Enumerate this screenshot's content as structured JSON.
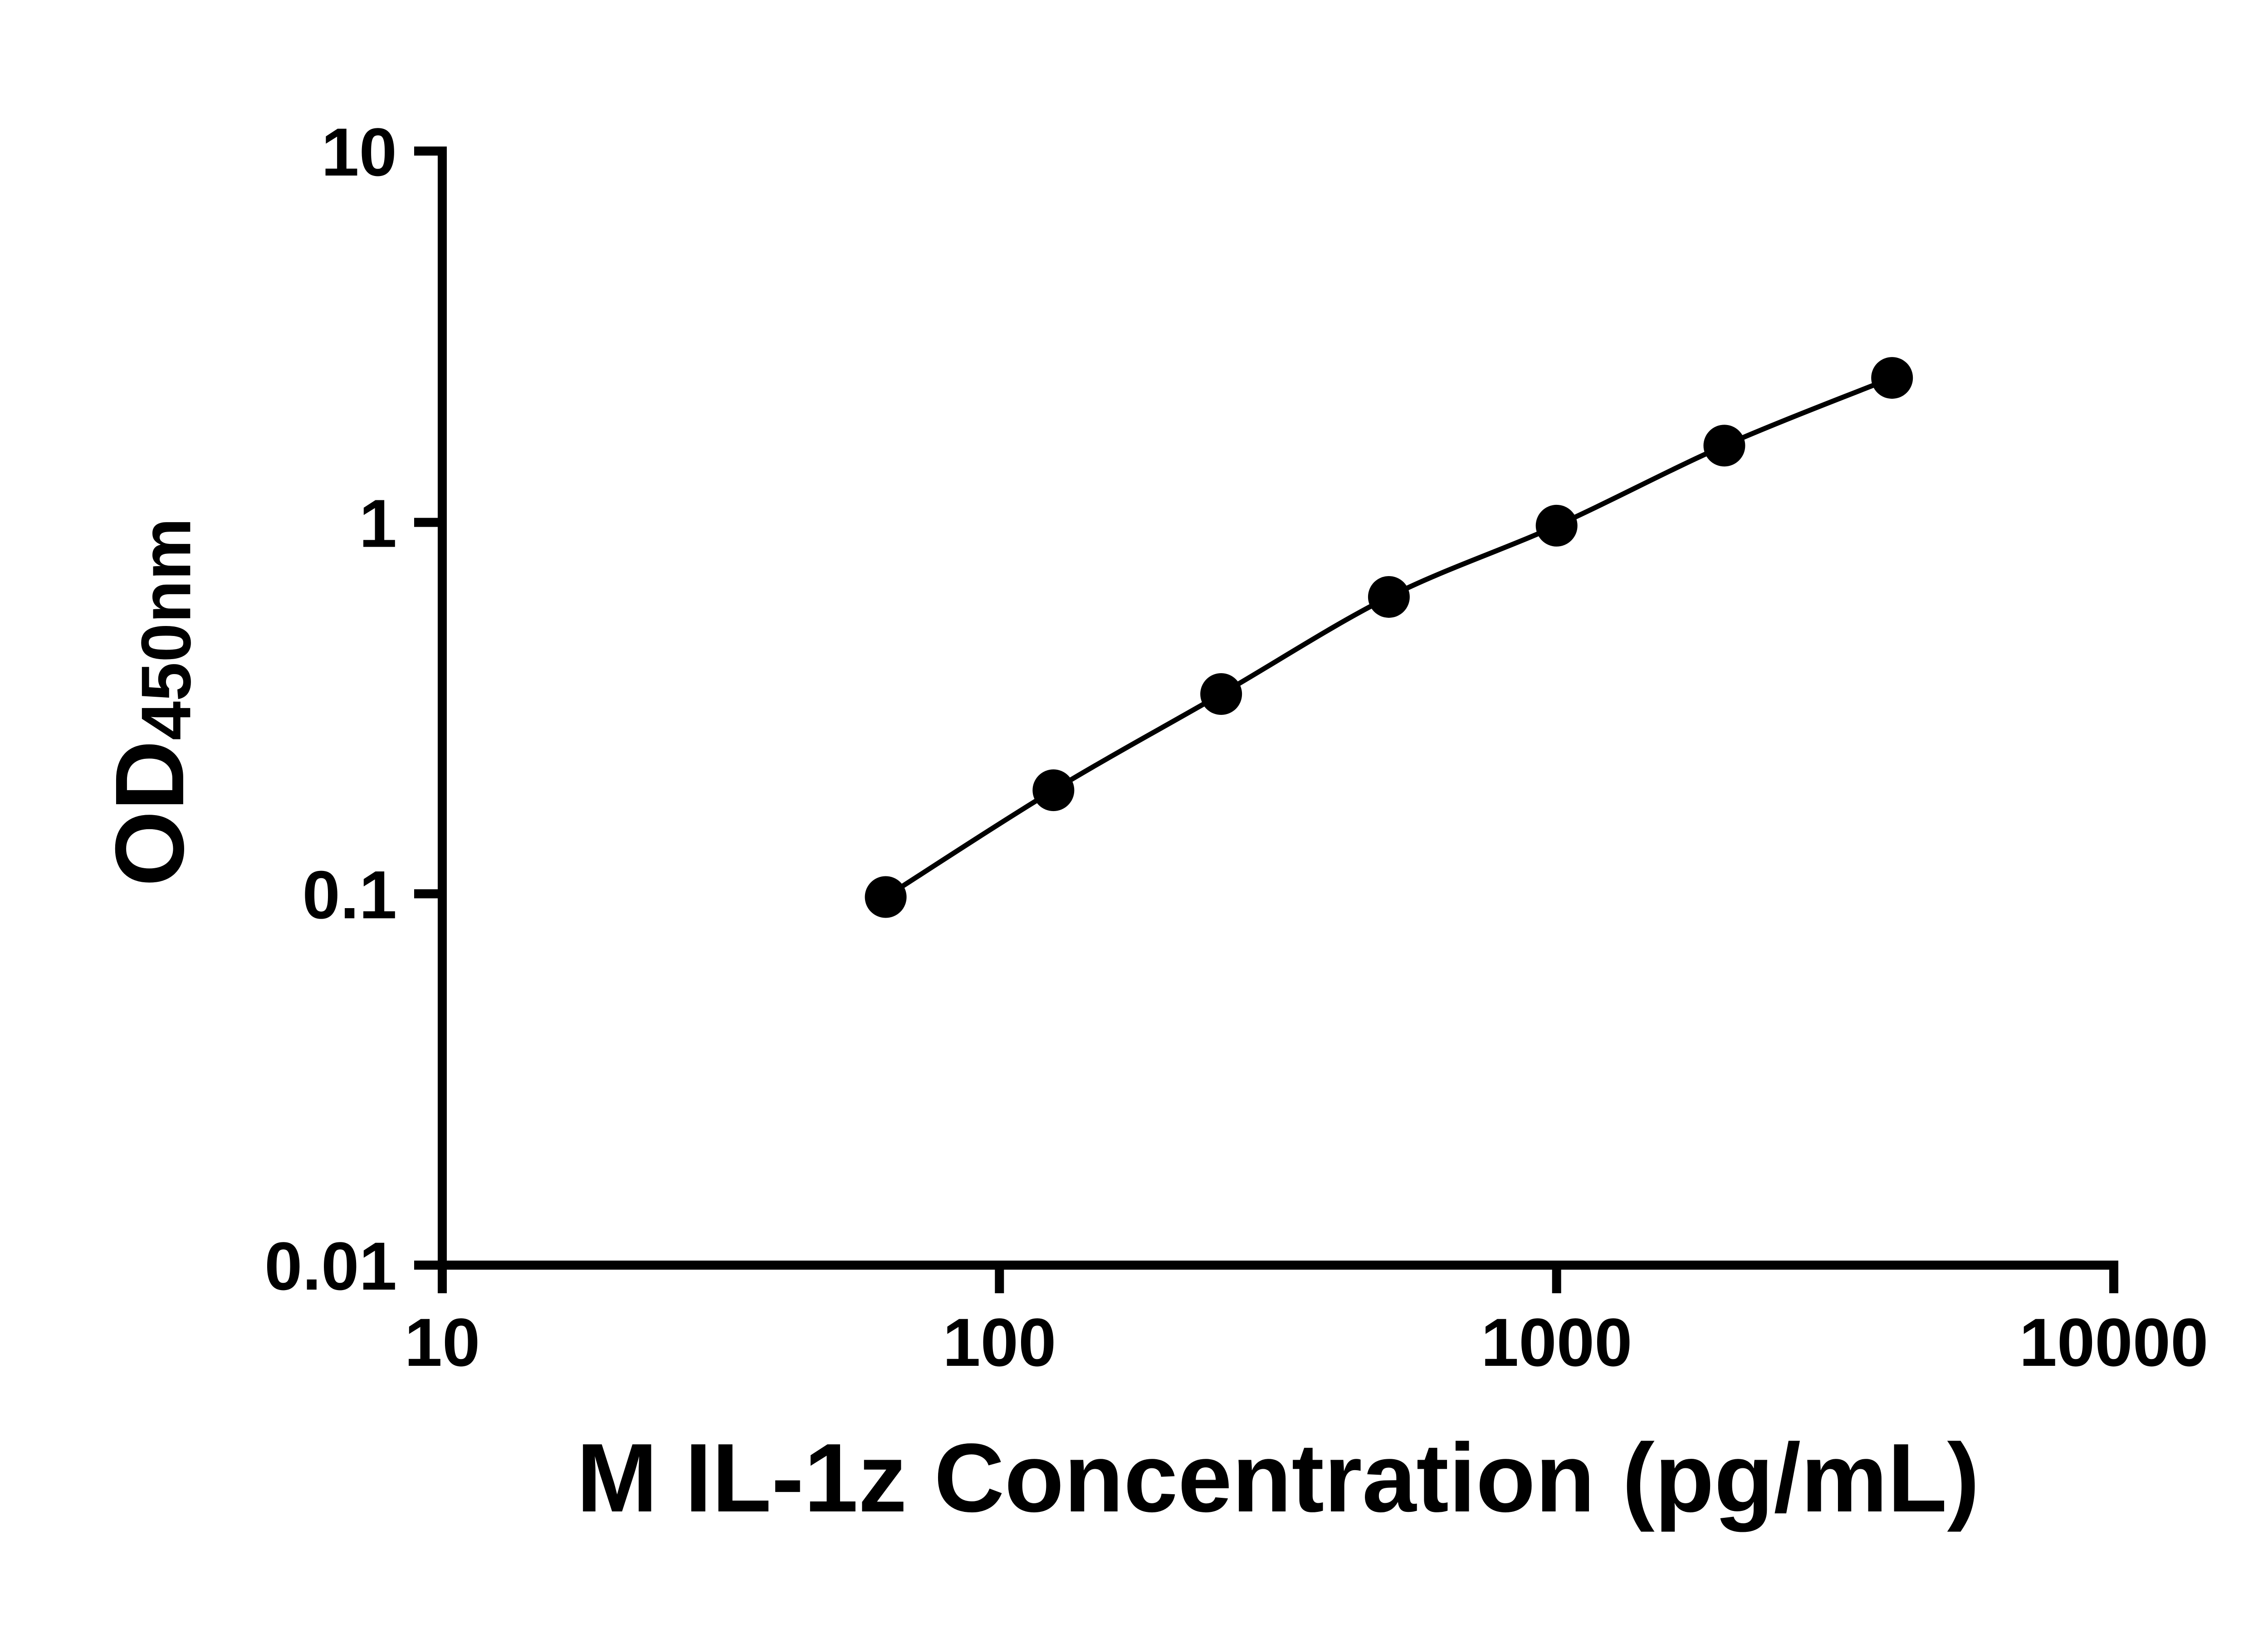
{
  "figure": {
    "background_color": "#ffffff",
    "ink_color": "#000000"
  },
  "chart_data": {
    "type": "scatter",
    "title": "",
    "xlabel": "M IL-1z Concentration (pg/mL)",
    "ylabel": "OD450nm",
    "ylabel_main": "OD",
    "ylabel_sub": "450nm",
    "x_scale": "log10",
    "y_scale": "log10",
    "xlim": [
      10,
      10000
    ],
    "ylim": [
      0.01,
      10
    ],
    "grid": false,
    "legend": "none",
    "marker": "filled-circle",
    "marker_color": "#000000",
    "line_style": "smooth",
    "line_color": "#000000",
    "x_ticks": {
      "values": [
        10,
        100,
        1000,
        10000
      ],
      "labels": [
        "10",
        "100",
        "1000",
        "10000"
      ]
    },
    "y_ticks": {
      "values": [
        0.01,
        0.1,
        1,
        10
      ],
      "labels": [
        "0.01",
        "0.1",
        "1",
        "10"
      ]
    },
    "x": [
      62.5,
      125,
      250,
      500,
      1000,
      2000,
      4000
    ],
    "y": [
      0.098,
      0.19,
      0.345,
      0.63,
      0.98,
      1.61,
      2.45
    ]
  }
}
